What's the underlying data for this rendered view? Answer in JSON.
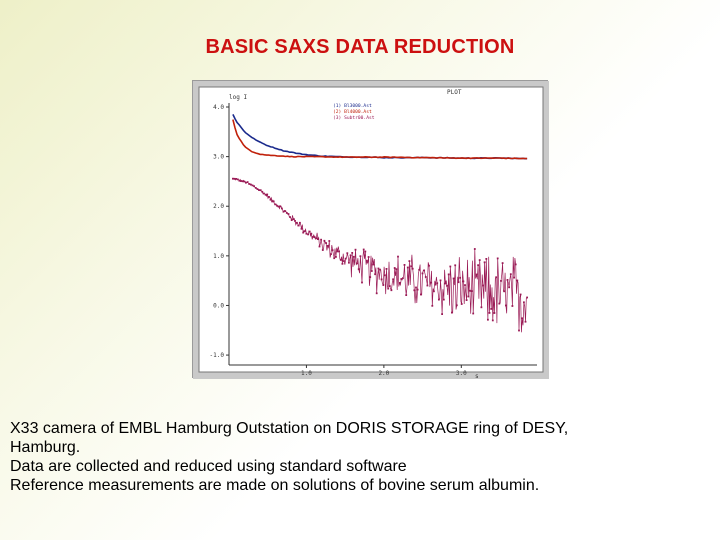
{
  "slide": {
    "title": "BASIC SAXS DATA REDUCTION",
    "caption_lines": [
      "X33 camera of EMBL Hamburg Outstation on DORIS STORAGE ring of DESY,",
      "Hamburg.",
      "Data are collected and reduced using standard software",
      "Reference measurements are made on solutions of bovine serum albumin."
    ]
  },
  "colors": {
    "title": "#cc1010",
    "series_1": "#1a2a8c",
    "series_2": "#c0200a",
    "series_3": "#9a1a55",
    "plot_bg": "#ffffff",
    "frame": "#c9c9c9"
  },
  "chart_data": {
    "type": "line",
    "window_title": "PLOT",
    "ylabel": "log I",
    "xlabel": "s",
    "xlim": [
      0.0,
      3.9
    ],
    "ylim": [
      -1.2,
      4.0
    ],
    "x_ticks": [
      "1.0",
      "2.0",
      "3.0"
    ],
    "y_ticks": [
      "4.0",
      "3.0",
      "2.0",
      "1.0",
      "0.0",
      "-1.0"
    ],
    "grid": false,
    "legend_position": "top-center",
    "series": [
      {
        "name": "(1)  Bl3000.Ast",
        "x": [
          0.05,
          0.1,
          0.2,
          0.3,
          0.4,
          0.5,
          0.6,
          0.7,
          0.8,
          0.9,
          1.0,
          1.2,
          1.4,
          1.6,
          1.8,
          2.0,
          2.5,
          3.0,
          3.5,
          3.85
        ],
        "y": [
          3.85,
          3.7,
          3.5,
          3.38,
          3.29,
          3.22,
          3.17,
          3.12,
          3.09,
          3.06,
          3.04,
          3.01,
          3.0,
          2.99,
          2.99,
          2.98,
          2.98,
          2.97,
          2.97,
          2.96
        ]
      },
      {
        "name": "(2)  Bl4000.Ast",
        "x": [
          0.05,
          0.1,
          0.2,
          0.3,
          0.4,
          0.5,
          0.6,
          0.7,
          0.8,
          1.0,
          1.5,
          2.0,
          2.5,
          3.0,
          3.5,
          3.85
        ],
        "y": [
          3.75,
          3.45,
          3.2,
          3.1,
          3.05,
          3.03,
          3.02,
          3.01,
          3.0,
          3.0,
          2.99,
          2.99,
          2.98,
          2.97,
          2.97,
          2.96
        ]
      },
      {
        "name": "(3)  Subtr00.Ast",
        "x": [
          0.05,
          0.1,
          0.2,
          0.3,
          0.4,
          0.5,
          0.6,
          0.7,
          0.8,
          0.9,
          1.0,
          1.1,
          1.2,
          1.3,
          1.4,
          1.5,
          1.6,
          1.7,
          1.8,
          1.9,
          2.0,
          2.2,
          2.4,
          2.6,
          2.8,
          3.0,
          3.2,
          3.4,
          3.6,
          3.85
        ],
        "y": [
          2.55,
          2.54,
          2.5,
          2.42,
          2.32,
          2.2,
          2.06,
          1.92,
          1.78,
          1.64,
          1.5,
          1.37,
          1.25,
          1.14,
          1.04,
          0.95,
          0.87,
          0.8,
          0.74,
          0.68,
          0.63,
          0.55,
          0.48,
          0.42,
          0.37,
          0.32,
          0.28,
          0.24,
          0.2,
          0.16
        ],
        "noise_amplitude": [
          0.02,
          0.02,
          0.02,
          0.03,
          0.03,
          0.04,
          0.05,
          0.06,
          0.07,
          0.09,
          0.11,
          0.13,
          0.16,
          0.19,
          0.22,
          0.26,
          0.3,
          0.34,
          0.38,
          0.42,
          0.45,
          0.5,
          0.55,
          0.6,
          0.65,
          0.7,
          0.75,
          0.8,
          0.85,
          0.9
        ]
      }
    ]
  }
}
